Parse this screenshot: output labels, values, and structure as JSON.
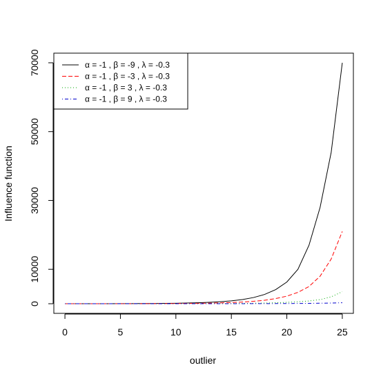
{
  "chart_data": {
    "type": "line",
    "xlabel": "outlier",
    "ylabel": "Influence function",
    "xlim": [
      -1,
      26
    ],
    "ylim": [
      -2800,
      72800
    ],
    "xticks": [
      0,
      5,
      10,
      15,
      20,
      25
    ],
    "yticks": [
      0,
      10000,
      30000,
      50000,
      70000
    ],
    "ytick_labels_shown": [
      0,
      10000,
      30000,
      50000,
      70000
    ],
    "grid": false,
    "legend_position": "top-left",
    "series": [
      {
        "name": "α = -1 ,  β = -9 ,  λ = -0.3",
        "color": "#000000",
        "dash": "solid",
        "x": [
          0,
          1,
          2,
          3,
          4,
          5,
          6,
          7,
          8,
          9,
          10,
          11,
          12,
          13,
          14,
          15,
          16,
          17,
          18,
          19,
          20,
          21,
          22,
          23,
          24,
          25
        ],
        "y": [
          0,
          5,
          10,
          15,
          20,
          25,
          35,
          50,
          70,
          100,
          140,
          200,
          280,
          400,
          580,
          830,
          1200,
          1800,
          2700,
          4100,
          6300,
          10000,
          17000,
          28000,
          44000,
          70000
        ]
      },
      {
        "name": "α = -1 ,  β = -3 ,  λ = -0.3",
        "color": "#ff0000",
        "dash": "dashed",
        "x": [
          0,
          1,
          2,
          3,
          4,
          5,
          6,
          7,
          8,
          9,
          10,
          11,
          12,
          13,
          14,
          15,
          16,
          17,
          18,
          19,
          20,
          21,
          22,
          23,
          24,
          25
        ],
        "y": [
          0,
          2,
          4,
          6,
          8,
          10,
          15,
          20,
          30,
          40,
          60,
          85,
          120,
          170,
          240,
          340,
          490,
          700,
          1000,
          1500,
          2200,
          3300,
          5000,
          8000,
          13000,
          21000
        ]
      },
      {
        "name": "α = -1 ,  β = 3 ,  λ = -0.3",
        "color": "#00aa00",
        "dash": "dotted",
        "x": [
          0,
          1,
          2,
          3,
          4,
          5,
          6,
          7,
          8,
          9,
          10,
          11,
          12,
          13,
          14,
          15,
          16,
          17,
          18,
          19,
          20,
          21,
          22,
          23,
          24,
          25
        ],
        "y": [
          0,
          1,
          1,
          2,
          2,
          3,
          4,
          5,
          7,
          10,
          13,
          18,
          25,
          35,
          50,
          70,
          100,
          140,
          200,
          280,
          400,
          560,
          800,
          1200,
          2000,
          3500
        ]
      },
      {
        "name": "α = -1 ,  β = 9 ,  λ = -0.3",
        "color": "#0000cc",
        "dash": "dotdash",
        "x": [
          0,
          1,
          2,
          3,
          4,
          5,
          6,
          7,
          8,
          9,
          10,
          11,
          12,
          13,
          14,
          15,
          16,
          17,
          18,
          19,
          20,
          21,
          22,
          23,
          24,
          25
        ],
        "y": [
          0,
          0,
          0,
          1,
          1,
          1,
          1,
          2,
          2,
          3,
          4,
          5,
          6,
          8,
          10,
          14,
          18,
          24,
          32,
          45,
          60,
          80,
          110,
          150,
          200,
          280
        ]
      }
    ]
  }
}
